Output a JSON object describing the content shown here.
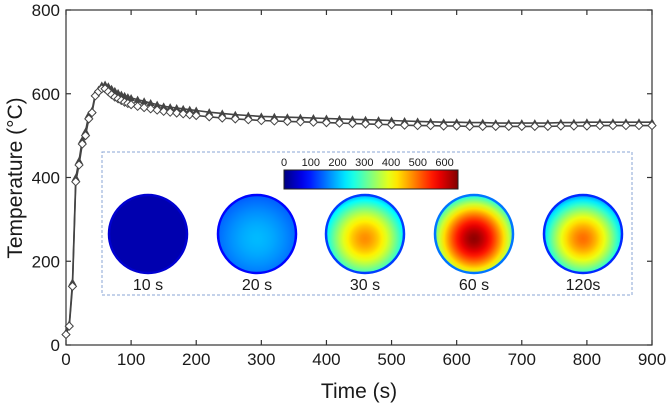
{
  "chart_data": {
    "type": "line",
    "xlabel": "Time (s)",
    "ylabel": "Temperature (°C)",
    "xlim": [
      0,
      900
    ],
    "ylim": [
      0,
      800
    ],
    "xticks": [
      "0",
      "100",
      "200",
      "300",
      "400",
      "500",
      "600",
      "700",
      "800",
      "900"
    ],
    "yticks": [
      "0",
      "200",
      "400",
      "600",
      "800"
    ],
    "grid": false,
    "series": [
      {
        "marker": "triangle-filled",
        "color": "#444444",
        "x": [
          0,
          5,
          10,
          15,
          20,
          25,
          30,
          35,
          40,
          45,
          50,
          55,
          60,
          65,
          70,
          75,
          80,
          85,
          90,
          95,
          100,
          110,
          120,
          130,
          140,
          150,
          160,
          170,
          180,
          190,
          200,
          220,
          240,
          260,
          280,
          300,
          320,
          340,
          360,
          380,
          400,
          420,
          440,
          460,
          480,
          500,
          520,
          540,
          560,
          580,
          600,
          620,
          640,
          660,
          680,
          700,
          720,
          740,
          760,
          780,
          800,
          820,
          840,
          860,
          880,
          900
        ],
        "y": [
          30,
          50,
          150,
          400,
          440,
          490,
          510,
          550,
          560,
          600,
          610,
          620,
          622,
          618,
          612,
          607,
          602,
          598,
          595,
          592,
          590,
          586,
          582,
          578,
          574,
          570,
          568,
          566,
          564,
          562,
          560,
          556,
          553,
          550,
          548,
          546,
          545,
          544,
          543,
          542,
          541,
          540,
          539,
          538,
          537,
          536,
          535,
          534,
          533,
          532,
          532,
          531,
          531,
          530,
          530,
          530,
          530,
          530,
          531,
          531,
          532,
          532,
          532,
          532,
          532,
          532
        ]
      },
      {
        "marker": "diamond-open",
        "color": "#444444",
        "x": [
          0,
          5,
          10,
          15,
          20,
          25,
          30,
          35,
          40,
          45,
          50,
          55,
          60,
          65,
          70,
          75,
          80,
          85,
          90,
          95,
          100,
          110,
          120,
          130,
          140,
          150,
          160,
          170,
          180,
          190,
          200,
          220,
          240,
          260,
          280,
          300,
          320,
          340,
          360,
          380,
          400,
          420,
          440,
          460,
          480,
          500,
          520,
          540,
          560,
          580,
          600,
          620,
          640,
          660,
          680,
          700,
          720,
          740,
          760,
          780,
          800,
          820,
          840,
          860,
          880,
          900
        ],
        "y": [
          25,
          45,
          140,
          390,
          430,
          480,
          500,
          540,
          555,
          595,
          605,
          612,
          612,
          605,
          598,
          592,
          588,
          584,
          580,
          577,
          574,
          570,
          567,
          564,
          561,
          558,
          556,
          554,
          552,
          550,
          548,
          545,
          542,
          540,
          538,
          536,
          535,
          534,
          533,
          532,
          531,
          530,
          529,
          528,
          527,
          526,
          525,
          524,
          524,
          523,
          523,
          522,
          522,
          522,
          522,
          522,
          522,
          522,
          523,
          523,
          523,
          524,
          524,
          524,
          524,
          524
        ]
      }
    ],
    "inset": {
      "colorbar": {
        "ticks": [
          "0",
          "100",
          "200",
          "300",
          "400",
          "500",
          "600"
        ],
        "range": [
          0,
          650
        ],
        "colormap": "jet"
      },
      "snapshots": [
        {
          "label": "10 s",
          "center_temp": 30,
          "edge_temp": 30
        },
        {
          "label": "20 s",
          "center_temp": 200,
          "edge_temp": 140
        },
        {
          "label": "30 s",
          "center_temp": 480,
          "edge_temp": 200
        },
        {
          "label": "60 s",
          "center_temp": 640,
          "edge_temp": 260
        },
        {
          "label": "120s",
          "center_temp": 500,
          "edge_temp": 180
        }
      ]
    }
  }
}
